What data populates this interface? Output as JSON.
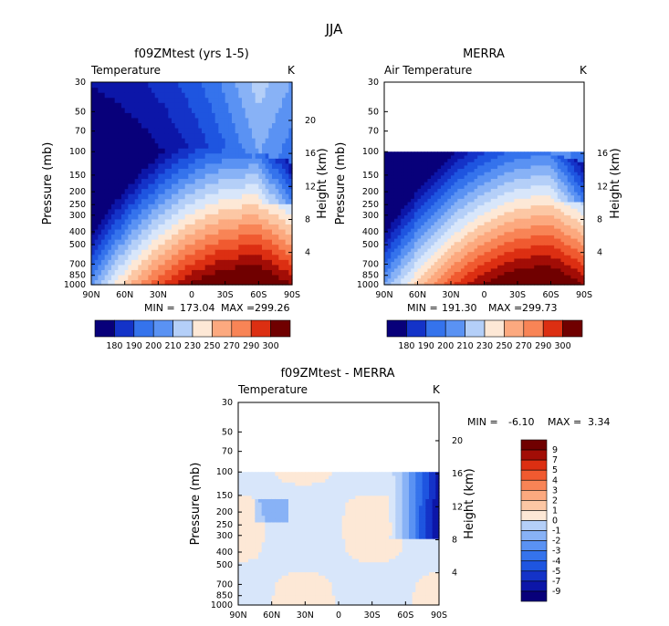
{
  "title": "JJA",
  "palette": [
    "#08007a",
    "#0c16a8",
    "#1433c8",
    "#1e55e0",
    "#3573ec",
    "#5a92f3",
    "#88b2f6",
    "#b4cff8",
    "#d8e6fa",
    "#fde8d6",
    "#fcc7a4",
    "#fca97f",
    "#f88456",
    "#f05a30",
    "#dc2f12",
    "#a20d06",
    "#700000"
  ],
  "panels": [
    {
      "title": "f09ZMtest (yrs 1-5)",
      "variable": "Temperature",
      "units": "K",
      "stats": {
        "min_label": "MIN =",
        "min": "173.04",
        "max_label": "MAX =",
        "max": "299.26"
      }
    },
    {
      "title": "MERRA",
      "variable": "Air Temperature",
      "units": "K",
      "stats": {
        "min_label": "MIN =",
        "min": "191.30",
        "max_label": "MAX =",
        "max": "299.73"
      }
    },
    {
      "title": "f09ZMtest - MERRA",
      "variable": "Temperature",
      "units": "K",
      "stats": {
        "min_label": "MIN =",
        "min": "-6.10",
        "max_label": "MAX =",
        "max": "3.34"
      }
    }
  ],
  "chart_data": [
    {
      "type": "heatmap",
      "title": "f09ZMtest (yrs 1-5)",
      "subtitle": "Temperature",
      "units": "K",
      "xlabel": "",
      "ylabel": "Pressure (mb)",
      "y2label": "Height (km)",
      "x_ticks": [
        "90N",
        "60N",
        "30N",
        "0",
        "30S",
        "60S",
        "90S"
      ],
      "x_range": [
        90,
        -90
      ],
      "y_ticks": [
        "30",
        "50",
        "70",
        "100",
        "150",
        "200",
        "250",
        "300",
        "400",
        "500",
        "700",
        "850",
        "1000"
      ],
      "y_tick_values": [
        30,
        50,
        70,
        100,
        150,
        200,
        250,
        300,
        400,
        500,
        700,
        850,
        1000
      ],
      "y_range": [
        1000,
        30
      ],
      "y_scale": "log",
      "y2_ticks": [
        "20",
        "16",
        "12",
        "8",
        "4"
      ],
      "y2_tick_values": [
        20,
        16,
        12,
        8,
        4
      ],
      "colorbar_labels": [
        "180",
        "190",
        "200",
        "210",
        "230",
        "250",
        "270",
        "290",
        "300"
      ],
      "min": 173.04,
      "max": 299.26
    },
    {
      "type": "heatmap",
      "title": "MERRA",
      "subtitle": "Air Temperature",
      "units": "K",
      "xlabel": "",
      "ylabel": "Pressure (mb)",
      "y2label": "Height (km)",
      "x_ticks": [
        "90N",
        "60N",
        "30N",
        "0",
        "30S",
        "60S",
        "90S"
      ],
      "x_range": [
        90,
        -90
      ],
      "y_ticks": [
        "30",
        "50",
        "70",
        "100",
        "150",
        "200",
        "250",
        "300",
        "400",
        "500",
        "700",
        "850",
        "1000"
      ],
      "y_tick_values": [
        30,
        50,
        70,
        100,
        150,
        200,
        250,
        300,
        400,
        500,
        700,
        850,
        1000
      ],
      "y_range": [
        1000,
        30
      ],
      "y_scale": "log",
      "y2_ticks": [
        "16",
        "12",
        "8",
        "4"
      ],
      "y2_tick_values": [
        16,
        12,
        8,
        4
      ],
      "colorbar_labels": [
        "180",
        "190",
        "200",
        "210",
        "230",
        "250",
        "270",
        "290",
        "300"
      ],
      "data_top_pressure": 100,
      "min": 191.3,
      "max": 299.73
    },
    {
      "type": "heatmap",
      "title": "f09ZMtest - MERRA",
      "subtitle": "Temperature",
      "units": "K",
      "xlabel": "",
      "ylabel": "Pressure (mb)",
      "y2label": "Height (km)",
      "x_ticks": [
        "90N",
        "60N",
        "30N",
        "0",
        "30S",
        "60S",
        "90S"
      ],
      "x_range": [
        90,
        -90
      ],
      "y_ticks": [
        "30",
        "50",
        "70",
        "100",
        "150",
        "200",
        "250",
        "300",
        "400",
        "500",
        "700",
        "850",
        "1000"
      ],
      "y_tick_values": [
        30,
        50,
        70,
        100,
        150,
        200,
        250,
        300,
        400,
        500,
        700,
        850,
        1000
      ],
      "y_range": [
        1000,
        30
      ],
      "y_scale": "log",
      "y2_ticks": [
        "20",
        "16",
        "12",
        "8",
        "4"
      ],
      "y2_tick_values": [
        20,
        16,
        12,
        8,
        4
      ],
      "colorbar_labels": [
        "9",
        "7",
        "5",
        "4",
        "3",
        "2",
        "1",
        "0",
        "-1",
        "-2",
        "-3",
        "-4",
        "-5",
        "-7",
        "-9"
      ],
      "data_top_pressure": 100,
      "min": -6.1,
      "max": 3.34
    }
  ]
}
